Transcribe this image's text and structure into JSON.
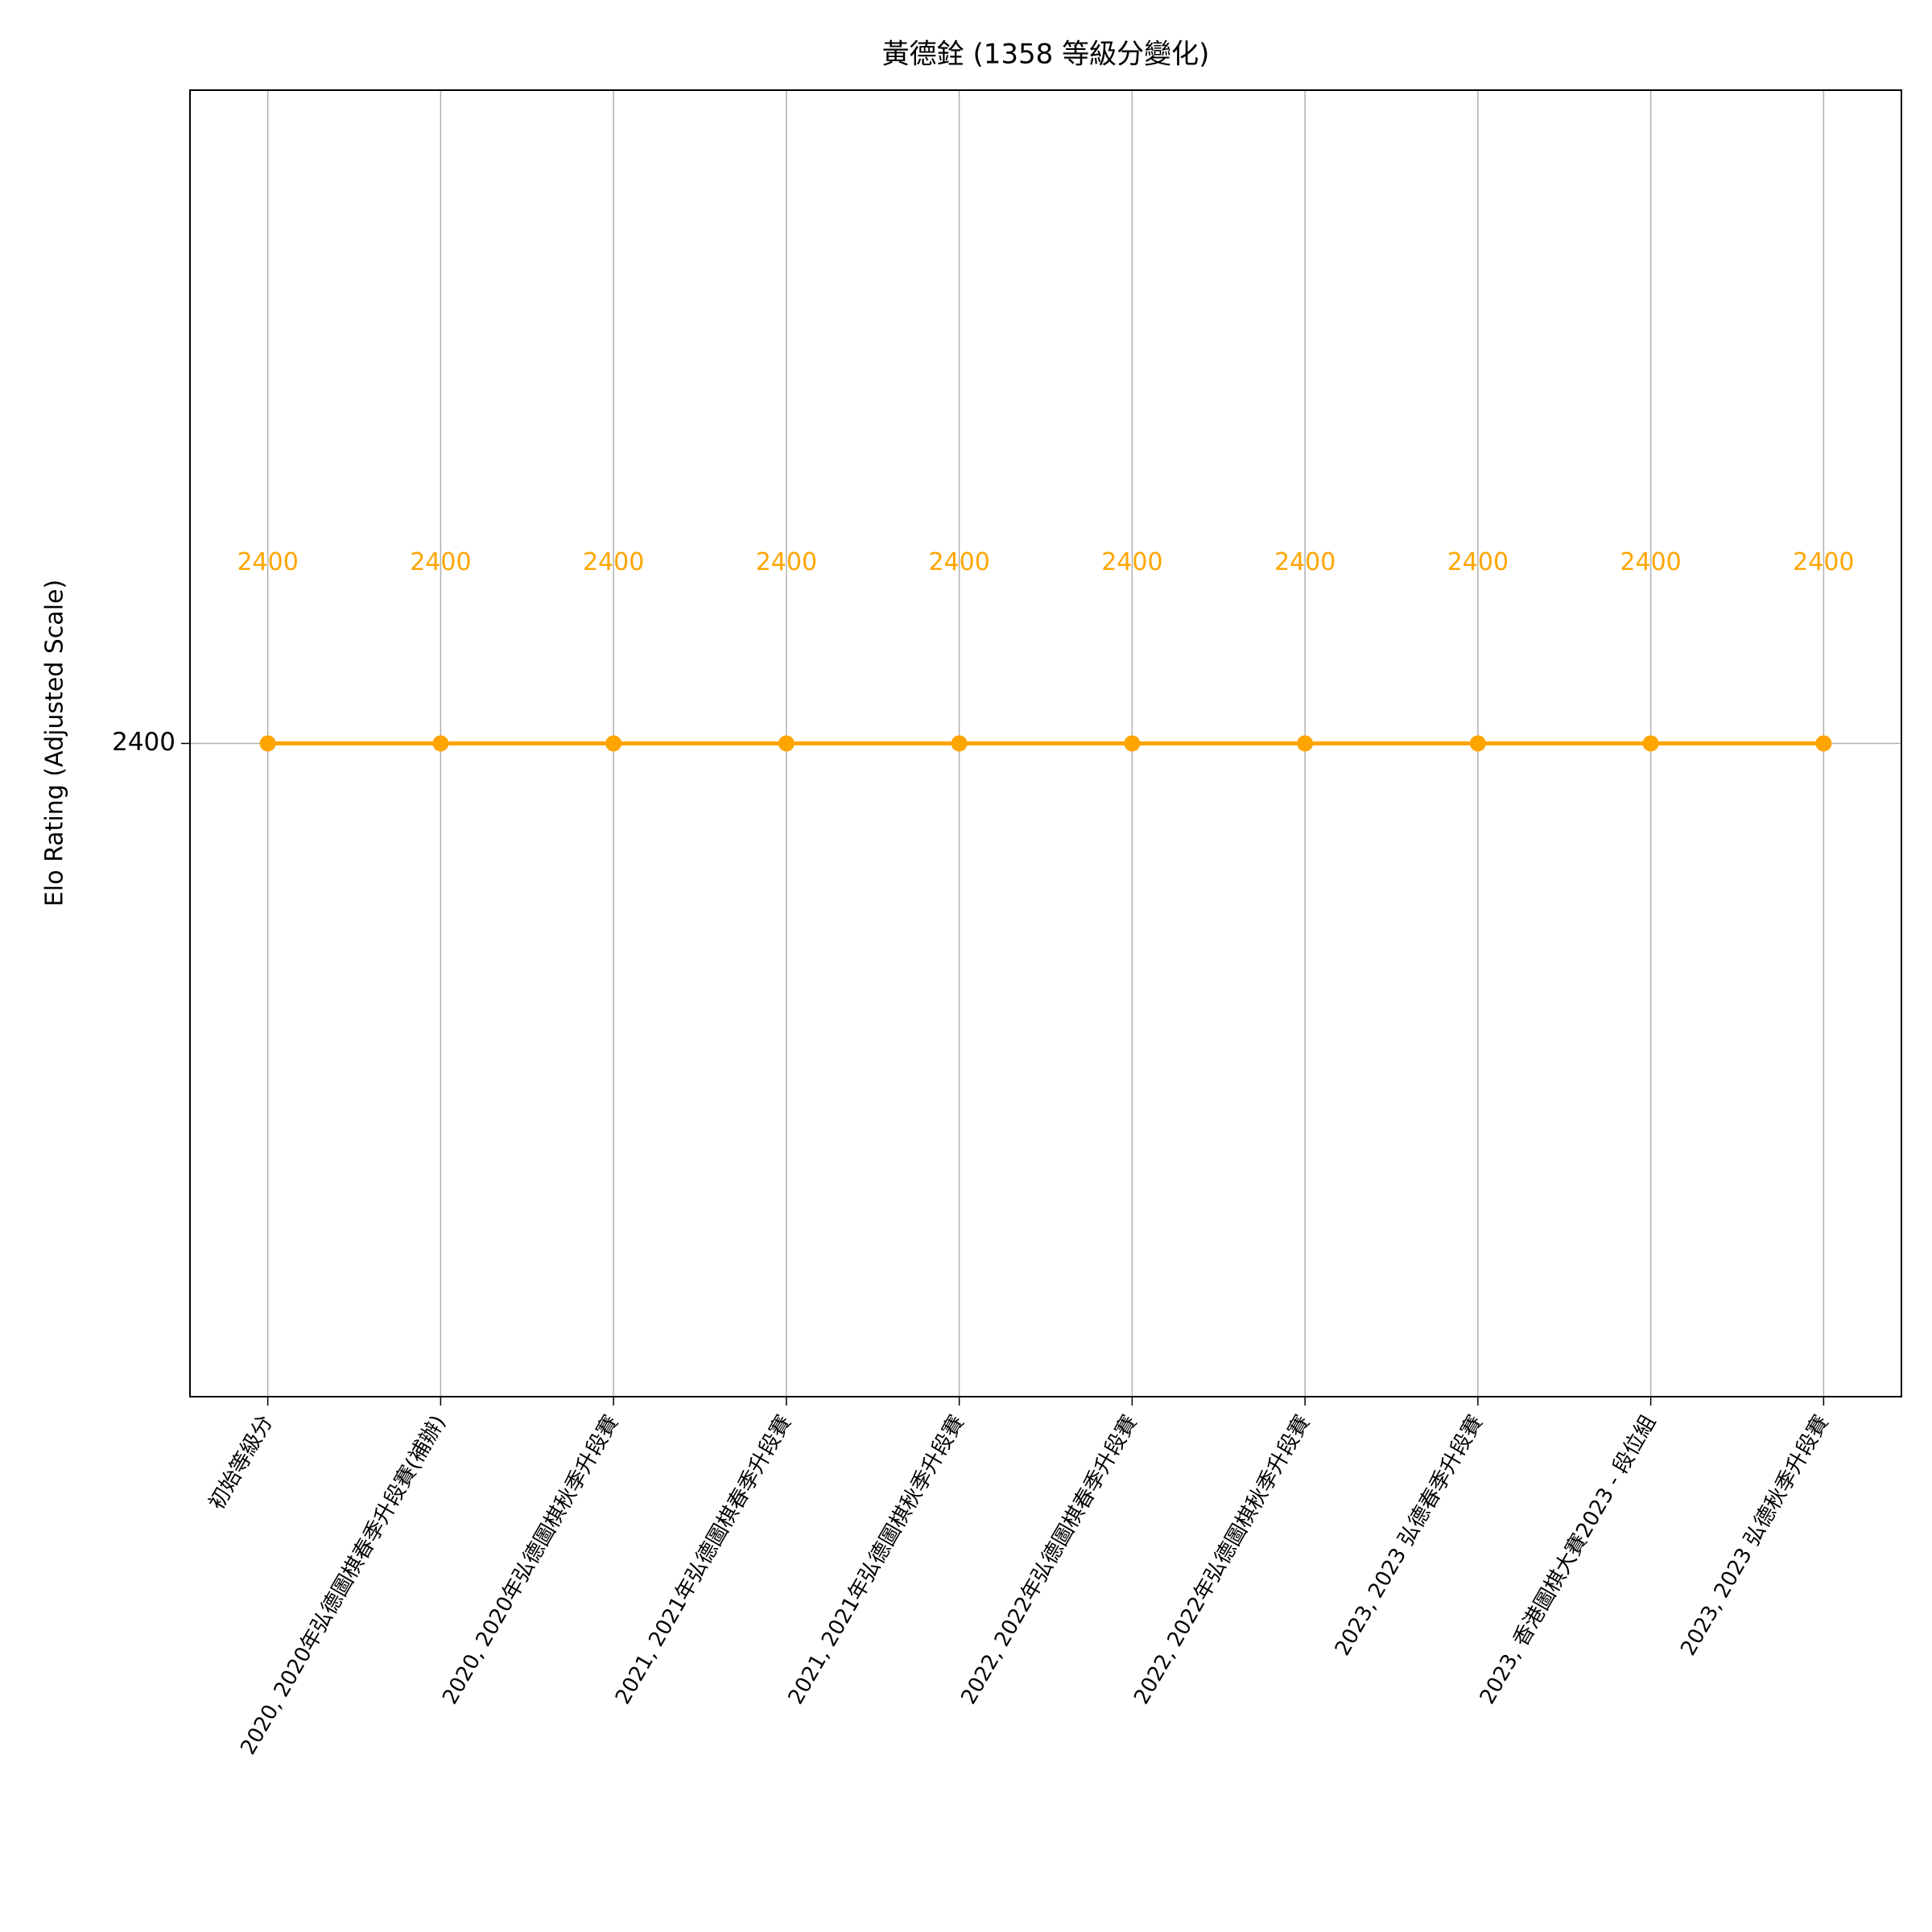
{
  "chart_data": {
    "type": "line",
    "title": "黃德銓 (1358 等級分變化)",
    "y_label": "Elo Rating (Adjusted Scale)",
    "categories": [
      "初始等級分",
      "2020, 2020年弘德圖棋春季升段賽(補辦)",
      "2020, 2020年弘德圖棋秋季升段賽",
      "2021, 2021年弘德圖棋春季升段賽",
      "2021, 2021年弘德圖棋秋季升段賽",
      "2022, 2022年弘德圖棋春季升段賽",
      "2022, 2022年弘德圖棋秋季升段賽",
      "2023, 2023 弘德春季升段賽",
      "2023, 香港圖棋大賽2023 - 段位組",
      "2023, 2023 弘德秋季升段賽"
    ],
    "series": [
      {
        "color": "#ffa500",
        "values": [
          2400,
          2400,
          2400,
          2400,
          2400,
          2400,
          2400,
          2400,
          2400,
          2400
        ]
      }
    ],
    "ylim": [
      2300,
      2500
    ],
    "yticks": [
      2400
    ],
    "grid": true
  }
}
